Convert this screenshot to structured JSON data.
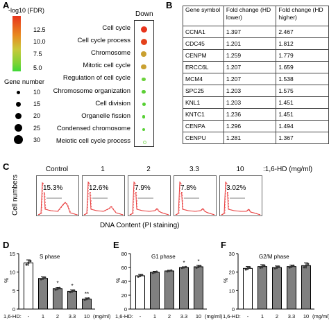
{
  "panelA": {
    "label": "A",
    "legend_title": "-log10 (FDR)",
    "colorbar_ticks": [
      "12.5",
      "10.0",
      "7.5",
      "5.0"
    ],
    "size_title": "Gene number",
    "size_ticks": [
      "10",
      "15",
      "20",
      "25",
      "30"
    ],
    "column_header": "Down",
    "terms": [
      {
        "name": "Cell cycle",
        "color": "#e8341c",
        "size": 9
      },
      {
        "name": "Cell cycle process",
        "color": "#e4421c",
        "size": 9
      },
      {
        "name": "Chromosome",
        "color": "#c9a030",
        "size": 7.5
      },
      {
        "name": "Mitotic cell cycle",
        "color": "#caa132",
        "size": 7.5
      },
      {
        "name": "Regulation of cell cycle",
        "color": "#6bd23b",
        "size": 5.5
      },
      {
        "name": "Chromosome organization",
        "color": "#5ccf36",
        "size": 5.5
      },
      {
        "name": "Cell division",
        "color": "#56d032",
        "size": 5
      },
      {
        "name": "Organelle fission",
        "color": "#58d035",
        "size": 4.5
      },
      {
        "name": "Condensed chromosome",
        "color": "#58d035",
        "size": 4
      },
      {
        "name": "Meiotic cell cycle process",
        "color": "#8fe070",
        "size": 3
      }
    ]
  },
  "panelB": {
    "label": "B",
    "headers": [
      "Gene symbol",
      "Fold change (HD lower)",
      "Fold change (HD higher)"
    ],
    "rows": [
      [
        "CCNA1",
        "1.397",
        "2.467"
      ],
      [
        "CDC45",
        "1.201",
        "1.812"
      ],
      [
        "CENPM",
        "1.259",
        "1.779"
      ],
      [
        "ERCC6L",
        "1.207",
        "1.659"
      ],
      [
        "MCM4",
        "1.207",
        "1.538"
      ],
      [
        "SPC25",
        "1.203",
        "1.575"
      ],
      [
        "KNL1",
        "1.203",
        "1.451"
      ],
      [
        "KNTC1",
        "1.236",
        "1.451"
      ],
      [
        "CENPA",
        "1.296",
        "1.494"
      ],
      [
        "CENPU",
        "1.281",
        "1.367"
      ]
    ]
  },
  "panelC": {
    "label": "C",
    "ylabel": "Cell numbers",
    "xlabel": "DNA Content (PI staining)",
    "unit_label": ":1,6-HD (mg/ml)",
    "conditions": [
      "Control",
      "1",
      "2",
      "3.3",
      "10"
    ],
    "percentages": [
      "15.3%",
      "12.6%",
      "7.9%",
      "7.8%",
      "3.02%"
    ]
  },
  "chart_data": [
    {
      "panel": "D",
      "type": "bar",
      "title": "S phase",
      "ylabel": "%",
      "xlabel": "1,6-HD:",
      "x_unit": "(mg/ml)",
      "categories": [
        "-",
        "1",
        "2",
        "3.3",
        "10"
      ],
      "values": [
        12.5,
        8.3,
        5.5,
        4.8,
        2.7
      ],
      "errors": [
        0.8,
        0.4,
        0.4,
        0.4,
        0.3
      ],
      "significance": [
        "",
        "",
        "*",
        "*",
        "**"
      ],
      "yticks": [
        0,
        5,
        10,
        15
      ],
      "ylim": [
        0,
        15
      ]
    },
    {
      "panel": "E",
      "type": "bar",
      "title": "G1 phase",
      "ylabel": "%",
      "xlabel": "1,6-HD:",
      "x_unit": "(mg/ml)",
      "categories": [
        "-",
        "1",
        "2",
        "3.3",
        "10"
      ],
      "values": [
        48,
        53,
        55,
        60,
        61
      ],
      "errors": [
        2,
        1.5,
        1,
        1,
        2
      ],
      "significance": [
        "",
        "",
        "",
        "*",
        "*"
      ],
      "yticks": [
        0,
        20,
        40,
        60,
        80
      ],
      "ylim": [
        0,
        80
      ]
    },
    {
      "panel": "F",
      "type": "bar",
      "title": "G2/M phase",
      "ylabel": "%",
      "xlabel": "1,6-HD:",
      "x_unit": "(mg/ml)",
      "categories": [
        "-",
        "1",
        "2",
        "3.3",
        "10"
      ],
      "values": [
        22,
        23,
        22.5,
        23,
        23.5
      ],
      "errors": [
        1,
        1,
        0.8,
        0.8,
        1.5
      ],
      "significance": [
        "",
        "",
        "",
        "",
        ""
      ],
      "yticks": [
        0,
        10,
        20,
        30
      ],
      "ylim": [
        0,
        30
      ]
    }
  ],
  "colors": {
    "bar_control": "#ffffff",
    "bar_treated": "#808080",
    "flow_line": "#e83b3b",
    "gradient_top": "#e8341c",
    "gradient_mid": "#c9c83a",
    "gradient_bottom": "#3ed838"
  }
}
